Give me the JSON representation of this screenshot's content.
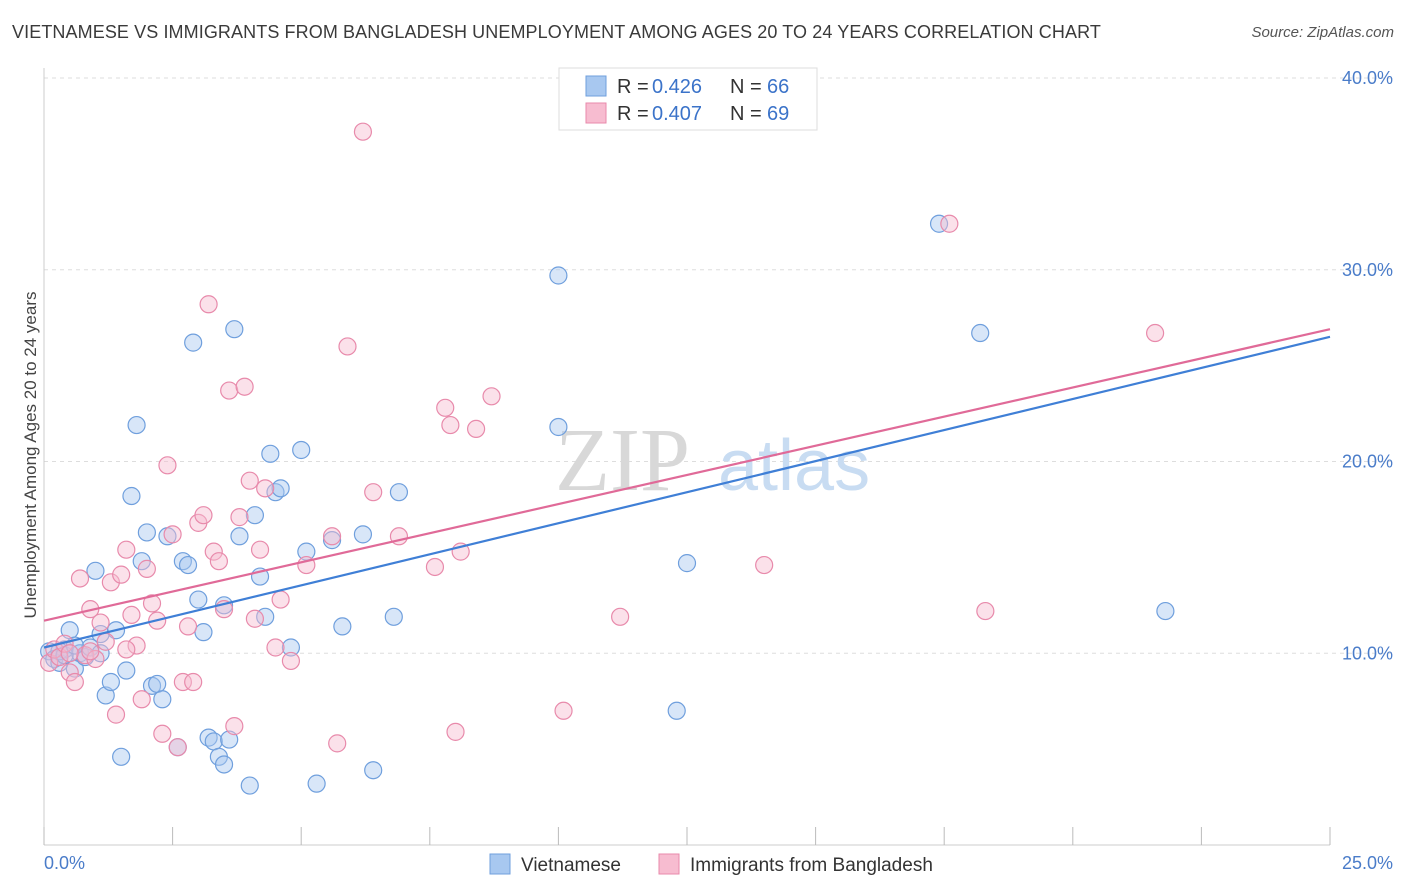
{
  "title": "VIETNAMESE VS IMMIGRANTS FROM BANGLADESH UNEMPLOYMENT AMONG AGES 20 TO 24 YEARS CORRELATION CHART",
  "source": "Source: ZipAtlas.com",
  "watermark": {
    "zip": "ZIP",
    "atlas": "atlas"
  },
  "legend": {
    "items": [
      {
        "r_label": "R =",
        "r_value": "0.426",
        "n_label": "N =",
        "n_value": "66",
        "color": "#a8c8f0",
        "stroke": "#6f9fdd"
      },
      {
        "r_label": "R =",
        "r_value": "0.407",
        "n_label": "N =",
        "n_value": "69",
        "color": "#f7bcd0",
        "stroke": "#e88aab"
      }
    ]
  },
  "bottom_legend": [
    "Vietnamese",
    "Immigrants from Bangladesh"
  ],
  "colors": {
    "blue": "#3f7fd6",
    "pink": "#e06a98",
    "blue_fill": "#a8c8f0",
    "pink_fill": "#f7bcd0",
    "grid": "#dddddd"
  },
  "chart_data": {
    "type": "scatter",
    "title": "VIETNAMESE VS IMMIGRANTS FROM BANGLADESH UNEMPLOYMENT AMONG AGES 20 TO 24 YEARS CORRELATION CHART",
    "xlabel": "",
    "ylabel": "Unemployment Among Ages 20 to 24 years",
    "xlim": [
      0,
      25
    ],
    "ylim": [
      0,
      40
    ],
    "x_tick_labels": [
      "0.0%",
      "25.0%"
    ],
    "y_tick_labels": [
      "10.0%",
      "20.0%",
      "30.0%",
      "40.0%"
    ],
    "y_ticks": [
      10,
      20,
      30,
      40
    ],
    "grid": true,
    "legend_position": "top-center",
    "series": [
      {
        "name": "Vietnamese",
        "trend": [
          [
            0,
            10.3
          ],
          [
            25,
            26.5
          ]
        ],
        "points": [
          [
            0.1,
            10.1
          ],
          [
            0.2,
            9.7
          ],
          [
            0.3,
            9.5
          ],
          [
            0.4,
            10.2
          ],
          [
            0.5,
            11.2
          ],
          [
            0.6,
            9.2
          ],
          [
            0.7,
            10.0
          ],
          [
            0.8,
            9.8
          ],
          [
            0.9,
            10.3
          ],
          [
            1.0,
            14.3
          ],
          [
            1.1,
            11.0
          ],
          [
            1.2,
            7.8
          ],
          [
            1.3,
            8.5
          ],
          [
            1.4,
            11.2
          ],
          [
            1.5,
            4.6
          ],
          [
            1.6,
            9.1
          ],
          [
            1.7,
            18.2
          ],
          [
            1.8,
            21.9
          ],
          [
            1.9,
            14.8
          ],
          [
            2.0,
            16.3
          ],
          [
            2.1,
            8.3
          ],
          [
            2.2,
            8.4
          ],
          [
            2.3,
            7.6
          ],
          [
            2.4,
            16.1
          ],
          [
            2.6,
            5.1
          ],
          [
            2.7,
            14.8
          ],
          [
            2.8,
            14.6
          ],
          [
            2.9,
            26.2
          ],
          [
            3.0,
            12.8
          ],
          [
            3.1,
            11.1
          ],
          [
            3.2,
            5.6
          ],
          [
            3.3,
            5.4
          ],
          [
            3.4,
            4.6
          ],
          [
            3.5,
            4.2
          ],
          [
            3.5,
            12.5
          ],
          [
            3.6,
            5.5
          ],
          [
            3.7,
            26.9
          ],
          [
            3.8,
            16.1
          ],
          [
            4.0,
            3.1
          ],
          [
            4.1,
            17.2
          ],
          [
            4.2,
            14.0
          ],
          [
            4.3,
            11.9
          ],
          [
            4.4,
            20.4
          ],
          [
            4.5,
            18.4
          ],
          [
            4.6,
            18.6
          ],
          [
            4.8,
            10.3
          ],
          [
            5.0,
            20.6
          ],
          [
            5.1,
            15.3
          ],
          [
            5.3,
            3.2
          ],
          [
            5.6,
            15.9
          ],
          [
            5.8,
            11.4
          ],
          [
            6.2,
            16.2
          ],
          [
            6.4,
            3.9
          ],
          [
            6.8,
            11.9
          ],
          [
            6.9,
            18.4
          ],
          [
            10.0,
            29.7
          ],
          [
            10.0,
            21.8
          ],
          [
            12.3,
            7.0
          ],
          [
            12.5,
            14.7
          ],
          [
            17.4,
            32.4
          ],
          [
            18.2,
            26.7
          ],
          [
            21.8,
            12.2
          ],
          [
            0.3,
            10.1
          ],
          [
            0.4,
            9.9
          ],
          [
            0.6,
            10.4
          ],
          [
            1.1,
            10.0
          ]
        ]
      },
      {
        "name": "Immigrants from Bangladesh",
        "trend": [
          [
            0,
            11.7
          ],
          [
            25,
            26.9
          ]
        ],
        "points": [
          [
            0.1,
            9.5
          ],
          [
            0.2,
            10.2
          ],
          [
            0.3,
            9.8
          ],
          [
            0.4,
            10.5
          ],
          [
            0.5,
            9.0
          ],
          [
            0.6,
            8.5
          ],
          [
            0.7,
            13.9
          ],
          [
            0.8,
            9.9
          ],
          [
            0.9,
            12.3
          ],
          [
            1.0,
            9.7
          ],
          [
            1.1,
            11.6
          ],
          [
            1.2,
            10.6
          ],
          [
            1.3,
            13.7
          ],
          [
            1.4,
            6.8
          ],
          [
            1.5,
            14.1
          ],
          [
            1.6,
            15.4
          ],
          [
            1.7,
            12.0
          ],
          [
            1.8,
            10.4
          ],
          [
            1.9,
            7.6
          ],
          [
            2.0,
            14.4
          ],
          [
            2.1,
            12.6
          ],
          [
            2.2,
            11.7
          ],
          [
            2.3,
            5.8
          ],
          [
            2.4,
            19.8
          ],
          [
            2.5,
            16.2
          ],
          [
            2.6,
            5.1
          ],
          [
            2.7,
            8.5
          ],
          [
            2.8,
            11.4
          ],
          [
            2.9,
            8.5
          ],
          [
            3.0,
            16.8
          ],
          [
            3.1,
            17.2
          ],
          [
            3.2,
            28.2
          ],
          [
            3.3,
            15.3
          ],
          [
            3.4,
            14.8
          ],
          [
            3.5,
            12.3
          ],
          [
            3.6,
            23.7
          ],
          [
            3.7,
            6.2
          ],
          [
            3.8,
            17.1
          ],
          [
            3.9,
            23.9
          ],
          [
            4.0,
            19.0
          ],
          [
            4.1,
            11.8
          ],
          [
            4.2,
            15.4
          ],
          [
            4.3,
            18.6
          ],
          [
            4.5,
            10.3
          ],
          [
            4.6,
            12.8
          ],
          [
            4.8,
            9.6
          ],
          [
            5.1,
            14.6
          ],
          [
            5.6,
            16.1
          ],
          [
            5.7,
            5.3
          ],
          [
            5.9,
            26.0
          ],
          [
            6.2,
            37.2
          ],
          [
            6.4,
            18.4
          ],
          [
            6.9,
            16.1
          ],
          [
            7.6,
            14.5
          ],
          [
            7.8,
            22.8
          ],
          [
            8.0,
            5.9
          ],
          [
            7.9,
            21.9
          ],
          [
            8.1,
            15.3
          ],
          [
            8.4,
            21.7
          ],
          [
            8.7,
            23.4
          ],
          [
            10.1,
            7.0
          ],
          [
            11.2,
            11.9
          ],
          [
            14.0,
            14.6
          ],
          [
            17.6,
            32.4
          ],
          [
            18.3,
            12.2
          ],
          [
            21.6,
            26.7
          ],
          [
            0.5,
            10.0
          ],
          [
            0.9,
            10.1
          ],
          [
            1.6,
            10.2
          ]
        ]
      }
    ]
  }
}
